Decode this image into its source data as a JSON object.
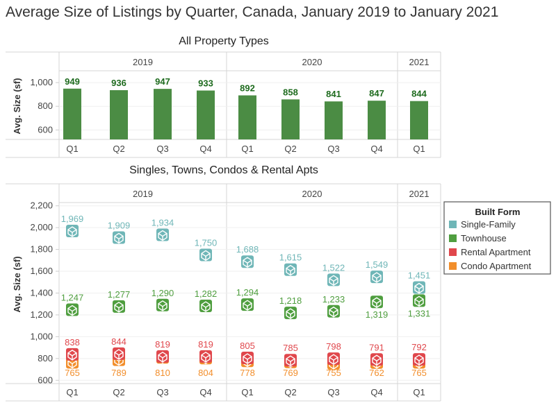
{
  "title": "Average Size of Listings by Quarter, Canada, January 2019 to January 2021",
  "colors": {
    "accent": "#4b8c44",
    "single_family": "#6fb6b7",
    "townhouse": "#4f9e3f",
    "rental_apartment": "#e0474c",
    "condo_apartment": "#f28e2b",
    "bar": "#4b8c44",
    "bar_label": "#1e6b1e"
  },
  "chart_data": [
    {
      "type": "bar",
      "title": "All Property Types",
      "years": [
        {
          "label": "2019",
          "quarters": [
            "Q1",
            "Q2",
            "Q3",
            "Q4"
          ]
        },
        {
          "label": "2020",
          "quarters": [
            "Q1",
            "Q2",
            "Q3",
            "Q4"
          ]
        },
        {
          "label": "2021",
          "quarters": [
            "Q1"
          ]
        }
      ],
      "categories": [
        "Q1",
        "Q2",
        "Q3",
        "Q4",
        "Q1",
        "Q2",
        "Q3",
        "Q4",
        "Q1"
      ],
      "values": [
        949,
        936,
        947,
        933,
        892,
        858,
        841,
        847,
        844
      ],
      "value_labels": [
        "949",
        "936",
        "947",
        "933",
        "892",
        "858",
        "841",
        "847",
        "844"
      ],
      "ylabel": "Avg. Size (sf)",
      "yticks": [
        600,
        800,
        1000
      ],
      "ytick_labels": [
        "600",
        "800",
        "1,000"
      ],
      "ylim": [
        520,
        1100
      ]
    },
    {
      "type": "scatter",
      "title": "Singles, Towns, Condos & Rental Apts",
      "years": [
        {
          "label": "2019",
          "quarters": [
            "Q1",
            "Q2",
            "Q3",
            "Q4"
          ]
        },
        {
          "label": "2020",
          "quarters": [
            "Q1",
            "Q2",
            "Q3",
            "Q4"
          ]
        },
        {
          "label": "2021",
          "quarters": [
            "Q1"
          ]
        }
      ],
      "categories": [
        "Q1",
        "Q2",
        "Q3",
        "Q4",
        "Q1",
        "Q2",
        "Q3",
        "Q4",
        "Q1"
      ],
      "ylabel": "Avg. Size (sf)",
      "yticks": [
        600,
        800,
        1000,
        1200,
        1400,
        1600,
        1800,
        2000,
        2200
      ],
      "ytick_labels": [
        "600",
        "800",
        "1,000",
        "1,200",
        "1,400",
        "1,600",
        "1,800",
        "2,000",
        "2,200"
      ],
      "ylim": [
        570,
        2230
      ],
      "legend": {
        "title": "Built Form",
        "position": "right"
      },
      "series": [
        {
          "name": "Single-Family",
          "color_key": "single_family",
          "values": [
            1969,
            1909,
            1934,
            1750,
            1688,
            1615,
            1522,
            1549,
            1451
          ],
          "labels": [
            "1,969",
            "1,909",
            "1,934",
            "1,750",
            "1,688",
            "1,615",
            "1,522",
            "1,549",
            "1,451"
          ],
          "label_pos": [
            "above",
            "above",
            "above",
            "above",
            "above",
            "above",
            "above",
            "above",
            "above"
          ]
        },
        {
          "name": "Townhouse",
          "color_key": "townhouse",
          "values": [
            1247,
            1277,
            1290,
            1282,
            1294,
            1218,
            1233,
            1319,
            1331
          ],
          "labels": [
            "1,247",
            "1,277",
            "1,290",
            "1,282",
            "1,294",
            "1,218",
            "1,233",
            "1,319",
            "1,331"
          ],
          "label_pos": [
            "above",
            "above",
            "above",
            "above",
            "above",
            "above",
            "above",
            "below",
            "below"
          ]
        },
        {
          "name": "Rental Apartment",
          "color_key": "rental_apartment",
          "values": [
            838,
            844,
            819,
            819,
            805,
            785,
            798,
            791,
            792
          ],
          "labels": [
            "838",
            "844",
            "819",
            "819",
            "805",
            "785",
            "798",
            "791",
            "792"
          ],
          "label_pos": [
            "above",
            "above",
            "above",
            "above",
            "above",
            "above",
            "above",
            "above",
            "above"
          ]
        },
        {
          "name": "Condo Apartment",
          "color_key": "condo_apartment",
          "values": [
            765,
            789,
            810,
            804,
            778,
            769,
            755,
            762,
            765
          ],
          "labels": [
            "765",
            "789",
            "810",
            "804",
            "778",
            "769",
            "755",
            "762",
            "765"
          ],
          "label_pos": [
            "below",
            "below",
            "below",
            "below",
            "below",
            "below",
            "below",
            "below",
            "below"
          ]
        }
      ]
    }
  ]
}
